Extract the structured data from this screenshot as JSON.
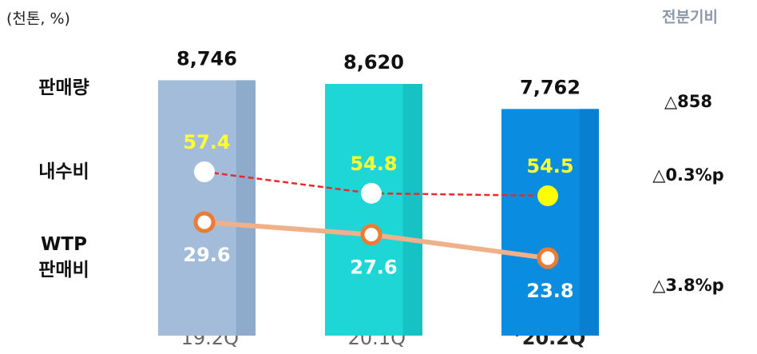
{
  "chart_data": {
    "type": "bar",
    "unit_label": "(천톤, %)",
    "change_header": "전분기비",
    "categories": [
      "’19.2Q",
      "’20.1Q",
      "’20.2Q"
    ],
    "highlight_category": 2,
    "ylim": [
      0,
      10400
    ],
    "y2lim": [
      37.6,
      74.3
    ],
    "y3lim": [
      11.3,
      60.3
    ],
    "series": [
      {
        "name": "판매량",
        "type": "bar",
        "values": [
          8746,
          8620,
          7762
        ],
        "value_labels": [
          "8,746",
          "8,620",
          "7,762"
        ],
        "colors": [
          "#a3bcd9",
          "#1fd6d6",
          "#0a8de0"
        ],
        "edge_colors": [
          "#8fabcb",
          "#17c2c4",
          "#0880cf"
        ],
        "change": "△858"
      },
      {
        "name": "내수비",
        "type": "line",
        "axis": "y2",
        "values": [
          57.4,
          54.8,
          54.5
        ],
        "color": "#e52b2b",
        "dashed": true,
        "label_color": "#ffff33",
        "point_fill": [
          "#ffffff",
          "#ffffff",
          "#ffff00"
        ],
        "change": "△0.3%p"
      },
      {
        "name": "WTP\n판매비",
        "type": "line",
        "axis": "y3",
        "values": [
          29.6,
          27.6,
          23.8
        ],
        "color": "#f0b08a",
        "dashed": false,
        "label_color": "#ffffff",
        "point_stroke": "#ec7b34",
        "point_fill": [
          "#ffffff",
          "#ffffff",
          "#ffffff"
        ],
        "change": "△3.8%p"
      }
    ]
  }
}
